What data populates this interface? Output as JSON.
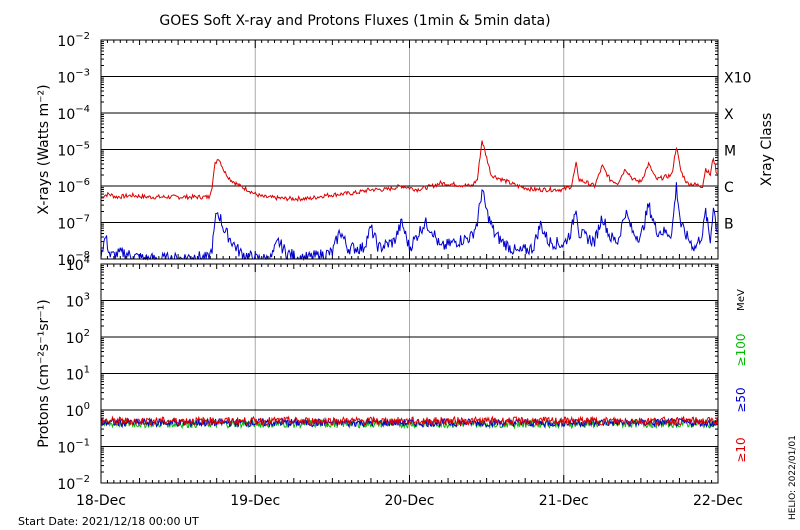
{
  "title": "GOES Soft X-ray and Protons Fluxes   (1min & 5min data)",
  "start_date": "Start Date: 2021/12/18 00:00 UT",
  "credit": "HELIO: 2022/01/01",
  "colors": {
    "xray_long": "#dd0000",
    "xray_short": "#0000cc",
    "p10": "#dd0000",
    "p50": "#0000cc",
    "p100": "#00bb00",
    "grid": "#000000",
    "day_line": "#aaaaaa"
  },
  "chart_data": [
    {
      "type": "line",
      "title": "",
      "ylabel": "X-rays (Watts m⁻²)",
      "yscale": "log",
      "ylim": [
        1e-08,
        0.01
      ],
      "x": [
        "18-Dec",
        "19-Dec",
        "20-Dec",
        "21-Dec",
        "22-Dec"
      ],
      "ytick_labels": [
        {
          "base": "10",
          "exp": "−8"
        },
        {
          "base": "10",
          "exp": "−7"
        },
        {
          "base": "10",
          "exp": "−6"
        },
        {
          "base": "10",
          "exp": "−5"
        },
        {
          "base": "10",
          "exp": "−4"
        },
        {
          "base": "10",
          "exp": "−3"
        },
        {
          "base": "10",
          "exp": "−2"
        }
      ],
      "right_axis_label": "Xray Class",
      "right_ticks": [
        {
          "label": "B",
          "value": 1e-07
        },
        {
          "label": "C",
          "value": 1e-06
        },
        {
          "label": "M",
          "value": 1e-05
        },
        {
          "label": "X",
          "value": 0.0001
        },
        {
          "label": "X10",
          "value": 0.001
        }
      ],
      "series": [
        {
          "color": "#dd0000",
          "points": [
            [
              0.0,
              4.5e-07
            ],
            [
              0.02,
              5.5e-07
            ],
            [
              0.05,
              6e-07
            ],
            [
              0.1,
              5e-07
            ],
            [
              0.2,
              5.5e-07
            ],
            [
              0.3,
              5e-07
            ],
            [
              0.4,
              5e-07
            ],
            [
              0.6,
              5e-07
            ],
            [
              0.7,
              5e-07
            ],
            [
              0.72,
              1e-06
            ],
            [
              0.74,
              4e-06
            ],
            [
              0.76,
              6e-06
            ],
            [
              0.78,
              4e-06
            ],
            [
              0.8,
              2.5e-06
            ],
            [
              0.84,
              1.5e-06
            ],
            [
              0.9,
              1e-06
            ],
            [
              0.95,
              8e-07
            ],
            [
              1.0,
              6e-07
            ],
            [
              1.05,
              5e-07
            ],
            [
              1.2,
              4.5e-07
            ],
            [
              1.35,
              4.5e-07
            ],
            [
              1.45,
              5.5e-07
            ],
            [
              1.55,
              6e-07
            ],
            [
              1.65,
              6.5e-07
            ],
            [
              1.75,
              8e-07
            ],
            [
              1.85,
              8e-07
            ],
            [
              1.95,
              1e-06
            ],
            [
              2.05,
              8e-07
            ],
            [
              2.15,
              1e-06
            ],
            [
              2.2,
              1.2e-06
            ],
            [
              2.3,
              1.1e-06
            ],
            [
              2.4,
              1e-06
            ],
            [
              2.44,
              1.5e-06
            ],
            [
              2.47,
              1.8e-05
            ],
            [
              2.5,
              6e-06
            ],
            [
              2.53,
              2e-06
            ],
            [
              2.6,
              1.5e-06
            ],
            [
              2.7,
              1e-06
            ],
            [
              2.8,
              8e-07
            ],
            [
              2.9,
              8e-07
            ],
            [
              3.0,
              8e-07
            ],
            [
              3.05,
              1e-06
            ],
            [
              3.08,
              4e-06
            ],
            [
              3.1,
              1.5e-06
            ],
            [
              3.2,
              1e-06
            ],
            [
              3.25,
              3.5e-06
            ],
            [
              3.3,
              1.5e-06
            ],
            [
              3.35,
              1.2e-06
            ],
            [
              3.4,
              3e-06
            ],
            [
              3.45,
              1.5e-06
            ],
            [
              3.5,
              1.3e-06
            ],
            [
              3.55,
              4e-06
            ],
            [
              3.6,
              1.5e-06
            ],
            [
              3.7,
              2e-06
            ],
            [
              3.73,
              1.2e-05
            ],
            [
              3.76,
              2.5e-06
            ],
            [
              3.8,
              1.2e-06
            ],
            [
              3.9,
              1e-06
            ],
            [
              3.92,
              3e-06
            ],
            [
              3.95,
              2e-06
            ],
            [
              3.97,
              6e-06
            ],
            [
              4.0,
              1.5e-06
            ]
          ]
        },
        {
          "color": "#0000cc",
          "points": [
            [
              0.0,
              1.5e-08
            ],
            [
              0.03,
              4e-08
            ],
            [
              0.06,
              1.2e-08
            ],
            [
              0.15,
              1.5e-08
            ],
            [
              0.2,
              1.2e-08
            ],
            [
              0.3,
              1e-08
            ],
            [
              0.5,
              1e-08
            ],
            [
              0.6,
              1.2e-08
            ],
            [
              0.7,
              1e-08
            ],
            [
              0.72,
              2e-08
            ],
            [
              0.75,
              2e-07
            ],
            [
              0.77,
              1.5e-07
            ],
            [
              0.8,
              6e-08
            ],
            [
              0.85,
              3e-08
            ],
            [
              0.9,
              1.5e-08
            ],
            [
              1.0,
              1e-08
            ],
            [
              1.1,
              1e-08
            ],
            [
              1.15,
              3e-08
            ],
            [
              1.2,
              1.5e-08
            ],
            [
              1.3,
              1e-08
            ],
            [
              1.4,
              1.2e-08
            ],
            [
              1.5,
              1.5e-08
            ],
            [
              1.55,
              6e-08
            ],
            [
              1.6,
              2e-08
            ],
            [
              1.7,
              2e-08
            ],
            [
              1.75,
              7e-08
            ],
            [
              1.8,
              2e-08
            ],
            [
              1.9,
              3e-08
            ],
            [
              1.95,
              1e-07
            ],
            [
              2.0,
              2e-08
            ],
            [
              2.1,
              1e-07
            ],
            [
              2.15,
              6e-08
            ],
            [
              2.2,
              2e-08
            ],
            [
              2.3,
              3e-08
            ],
            [
              2.4,
              4e-08
            ],
            [
              2.44,
              1e-07
            ],
            [
              2.47,
              8e-07
            ],
            [
              2.5,
              2e-07
            ],
            [
              2.55,
              5e-08
            ],
            [
              2.6,
              3e-08
            ],
            [
              2.7,
              1.5e-08
            ],
            [
              2.8,
              2e-08
            ],
            [
              2.85,
              9e-08
            ],
            [
              2.9,
              3e-08
            ],
            [
              3.0,
              2.5e-08
            ],
            [
              3.05,
              6e-08
            ],
            [
              3.08,
              3e-07
            ],
            [
              3.1,
              5e-08
            ],
            [
              3.2,
              3e-08
            ],
            [
              3.25,
              1.5e-07
            ],
            [
              3.3,
              4e-08
            ],
            [
              3.35,
              3e-08
            ],
            [
              3.4,
              2e-07
            ],
            [
              3.45,
              5e-08
            ],
            [
              3.5,
              4e-08
            ],
            [
              3.55,
              3e-07
            ],
            [
              3.6,
              6e-08
            ],
            [
              3.7,
              5e-08
            ],
            [
              3.73,
              1e-06
            ],
            [
              3.76,
              8e-08
            ],
            [
              3.8,
              4e-08
            ],
            [
              3.85,
              2e-08
            ],
            [
              3.9,
              5e-08
            ],
            [
              3.92,
              2e-07
            ],
            [
              3.95,
              3e-08
            ],
            [
              3.97,
              3e-07
            ],
            [
              4.0,
              4e-08
            ]
          ]
        }
      ]
    },
    {
      "type": "line",
      "title": "",
      "ylabel": "Protons (cm⁻²s⁻¹sr⁻¹)",
      "yscale": "log",
      "ylim": [
        0.01,
        10000
      ],
      "x": [
        "18-Dec",
        "19-Dec",
        "20-Dec",
        "21-Dec",
        "22-Dec"
      ],
      "ytick_labels": [
        {
          "base": "10",
          "exp": "−2"
        },
        {
          "base": "10",
          "exp": "−1"
        },
        {
          "base": "10",
          "exp": "0"
        },
        {
          "base": "10",
          "exp": "1"
        },
        {
          "base": "10",
          "exp": "2"
        },
        {
          "base": "10",
          "exp": "3"
        },
        {
          "base": "10",
          "exp": "4"
        }
      ],
      "threshold": 10,
      "right_labels": [
        {
          "label": "MeV",
          "color": "#000000"
        },
        {
          "label": "≥100",
          "color": "#00bb00"
        },
        {
          "label": "≥50",
          "color": "#0000cc"
        },
        {
          "label": "≥10",
          "color": "#dd0000"
        }
      ],
      "series": [
        {
          "name": "≥10",
          "color": "#dd0000",
          "level": 0.5
        },
        {
          "name": "≥50",
          "color": "#0000cc",
          "level": 0.45
        },
        {
          "name": "≥100",
          "color": "#00bb00",
          "level": 0.42
        }
      ]
    }
  ]
}
